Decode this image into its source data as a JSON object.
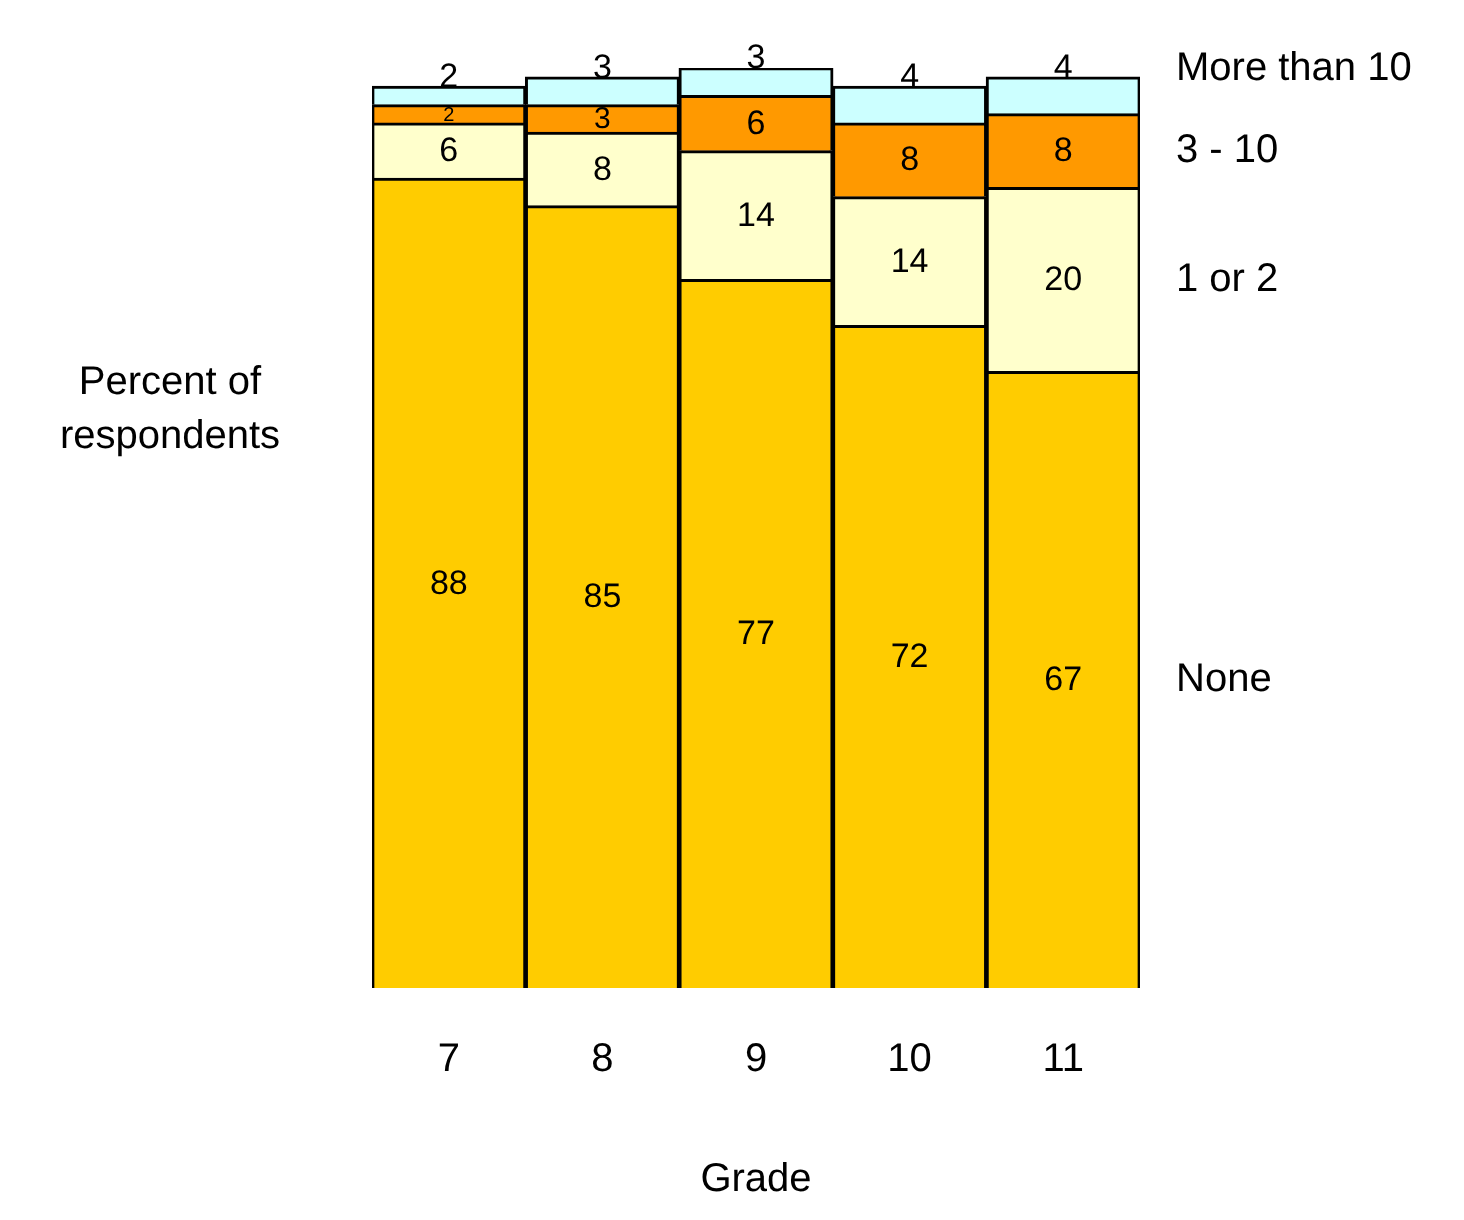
{
  "chart_data": {
    "type": "bar",
    "stacked": true,
    "tick_labels": "x",
    "data_labels": true,
    "grid": false,
    "legend": false,
    "xlabel": "Grade",
    "ylabel": "Percent of respondents",
    "categories": [
      "7",
      "8",
      "9",
      "10",
      "11"
    ],
    "series": [
      {
        "name": "None",
        "color": "#ffcc00",
        "values": [
          88,
          85,
          77,
          72,
          67
        ]
      },
      {
        "name": "1 or 2",
        "color": "#ffffcc",
        "values": [
          6,
          8,
          14,
          14,
          20
        ]
      },
      {
        "name": "3 - 10",
        "color": "#ff9900",
        "values": [
          2,
          3,
          6,
          8,
          8
        ]
      },
      {
        "name": "More than 10",
        "color": "#ccffff",
        "values": [
          2,
          3,
          3,
          4,
          4
        ]
      }
    ]
  }
}
